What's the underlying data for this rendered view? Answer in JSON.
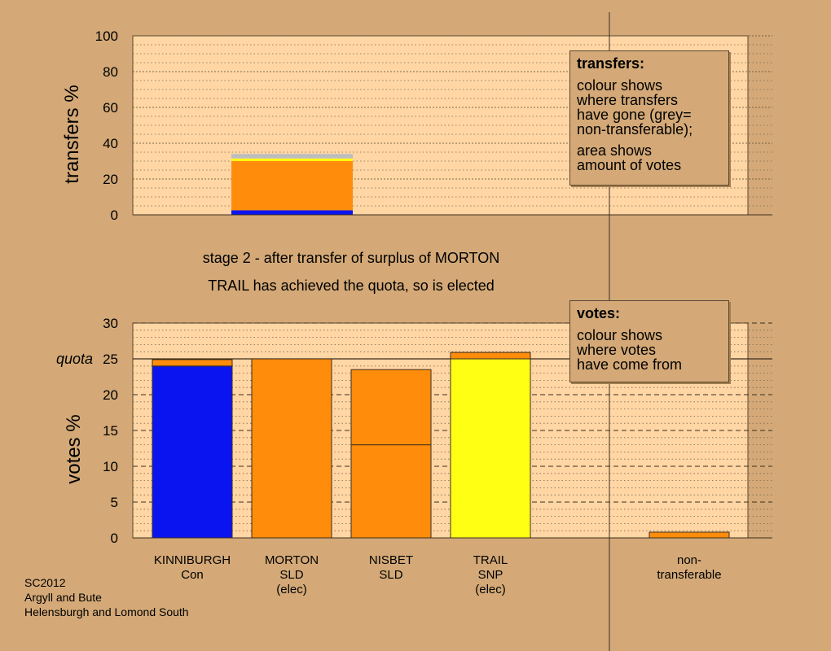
{
  "colors": {
    "background": "#D4A977",
    "plot_fill": "#FFD6A4",
    "con": "#0A14F0",
    "sld": "#FF8C0A",
    "snp": "#FFFF14",
    "non_transferable": "#BEBEBE"
  },
  "headings": {
    "line1": "stage 2 - after transfer of surplus of MORTON",
    "line2": "TRAIL has achieved the quota, so is elected"
  },
  "legend_transfers": {
    "title": "transfers:",
    "lines": [
      "colour shows",
      "where transfers",
      "have gone (grey=",
      "non-transferable);"
    ],
    "lines2": [
      "area shows",
      "amount of votes"
    ]
  },
  "legend_votes": {
    "title": "votes:",
    "lines": [
      "colour shows",
      "where votes",
      "have come from"
    ]
  },
  "footer": {
    "line1": "SC2012",
    "line2": "Argyll and Bute",
    "line3": "Helensburgh and Lomond South"
  },
  "chart_data": [
    {
      "type": "bar",
      "stacked": true,
      "ylabel": "transfers %",
      "ylim": [
        0,
        100
      ],
      "yticks": [
        0,
        20,
        40,
        60,
        80,
        100
      ],
      "grid": "dotted",
      "bar": {
        "segments": [
          {
            "color": "#0A14F0",
            "value": 2.5
          },
          {
            "color": "#FF8C0A",
            "value": 27.5
          },
          {
            "color": "#FFFF14",
            "value": 1.5
          },
          {
            "color": "#BEBEBE",
            "value": 2.5
          }
        ]
      }
    },
    {
      "type": "bar",
      "stacked": true,
      "ylabel": "votes %",
      "ylim": [
        0,
        30
      ],
      "yticks": [
        0,
        5,
        10,
        15,
        20,
        25,
        30
      ],
      "quota": 25,
      "quota_label": "quota",
      "grid": "dashed",
      "categories": [
        {
          "lines": [
            "KINNIBURGH",
            "Con"
          ],
          "segments": [
            {
              "color": "#0A14F0",
              "value": 24
            },
            {
              "color": "#FF8C0A",
              "value": 0.9
            }
          ]
        },
        {
          "lines": [
            "MORTON",
            "SLD",
            "(elec)"
          ],
          "segments": [
            {
              "color": "#FF8C0A",
              "value": 25
            }
          ]
        },
        {
          "lines": [
            "NISBET",
            "SLD"
          ],
          "segments": [
            {
              "color": "#FF8C0A",
              "value": 13
            },
            {
              "color": "#FF8C0A",
              "value": 10.5
            }
          ]
        },
        {
          "lines": [
            "TRAIL",
            "SNP",
            "(elec)"
          ],
          "segments": [
            {
              "color": "#FFFF14",
              "value": 25
            },
            {
              "color": "#FF8C0A",
              "value": 0.9
            }
          ]
        },
        {
          "lines": [
            "non-",
            "transferable"
          ],
          "segments": [
            {
              "color": "#FF8C0A",
              "value": 0.8
            }
          ]
        }
      ]
    }
  ]
}
